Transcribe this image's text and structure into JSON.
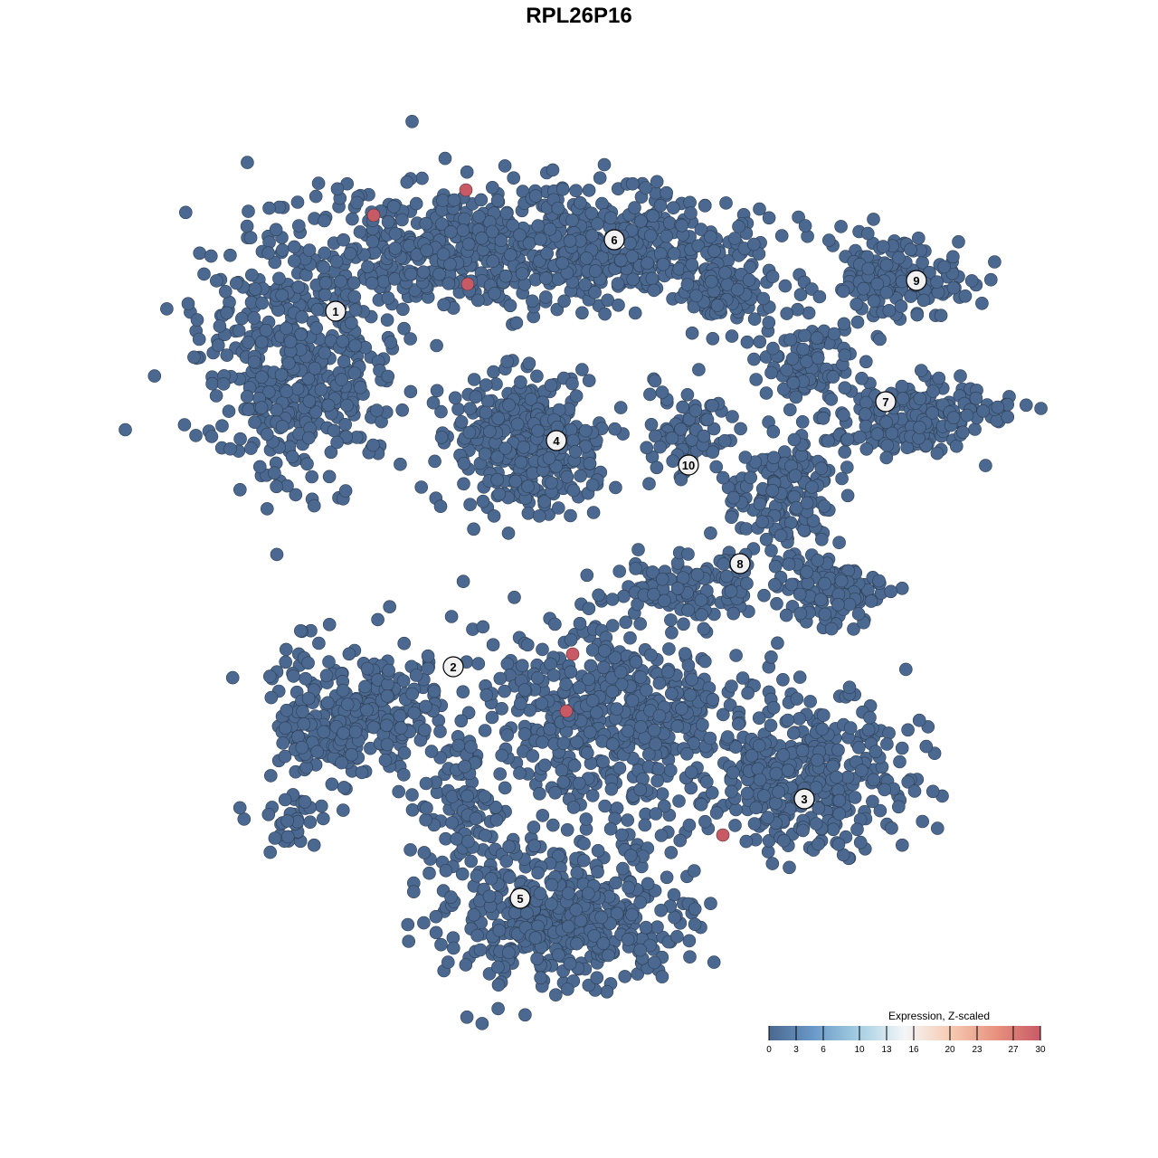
{
  "chart_data": {
    "type": "scatter",
    "title": "RPL26P16",
    "xlabel": "",
    "ylabel": "",
    "grid": false,
    "axes_visible": false,
    "point_color_default": "#4a6890",
    "cluster_labels": [
      {
        "label": "1",
        "x": -29.4,
        "y": 29.6
      },
      {
        "label": "2",
        "x": -16.4,
        "y": -9.7
      },
      {
        "label": "3",
        "x": 22.4,
        "y": -24.3
      },
      {
        "label": "4",
        "x": -5.0,
        "y": 15.3
      },
      {
        "label": "5",
        "x": -9.0,
        "y": -35.3
      },
      {
        "label": "6",
        "x": 1.4,
        "y": 37.5
      },
      {
        "label": "7",
        "x": 31.4,
        "y": 19.6
      },
      {
        "label": "8",
        "x": 15.3,
        "y": 1.7
      },
      {
        "label": "9",
        "x": 34.8,
        "y": 33.0
      },
      {
        "label": "10",
        "x": 9.6,
        "y": 12.6
      }
    ],
    "high_expression_points": [
      {
        "x": -15.0,
        "y": 43.0,
        "value": 30
      },
      {
        "x": -25.2,
        "y": 40.2,
        "value": 30
      },
      {
        "x": -14.8,
        "y": 32.6,
        "value": 30
      },
      {
        "x": -3.2,
        "y": -8.3,
        "value": 30
      },
      {
        "x": -3.9,
        "y": -14.6,
        "value": 30
      },
      {
        "x": 13.4,
        "y": -28.3,
        "value": 30
      }
    ],
    "other_points_value": 0,
    "legend": {
      "title": "Expression, Z-scaled",
      "placement": "bottom-right",
      "range": [
        0,
        30
      ],
      "ticks": [
        "0",
        "3",
        "6",
        "10",
        "13",
        "16",
        "20",
        "23",
        "27",
        "30"
      ],
      "colors": [
        "#4a6890",
        "#6a9ac8",
        "#a6cfe3",
        "#f4f6f8",
        "#f6cbb4",
        "#e8937f",
        "#c85a66"
      ]
    }
  }
}
